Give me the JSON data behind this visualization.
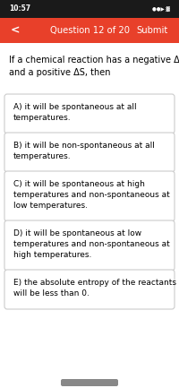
{
  "status_bar_text": "10:57",
  "header_bg": "#E8402A",
  "header_text": "Question 12 of 20",
  "header_left": "<",
  "header_right": "Submit",
  "header_text_color": "#FFFFFF",
  "bg_color": "#FFFFFF",
  "outer_bg": "#1A1A1A",
  "screen_bg": "#F2F2F2",
  "question_text": "If a chemical reaction has a negative ΔH\nand a positive ΔS, then",
  "options": [
    "A) it will be spontaneous at all\ntemperatures.",
    "B) it will be non-spontaneous at all\ntemperatures.",
    "C) it will be spontaneous at high\ntemperatures and non-spontaneous at\nlow temperatures.",
    "D) it will be spontaneous at low\ntemperatures and non-spontaneous at\nhigh temperatures.",
    "E) the absolute entropy of the reactants\nwill be less than 0."
  ],
  "option_box_color": "#FFFFFF",
  "option_border_color": "#CCCCCC",
  "option_text_color": "#000000",
  "question_text_color": "#000000",
  "font_size_question": 7.0,
  "font_size_option": 6.5,
  "font_size_header": 7.2,
  "font_size_status": 5.5,
  "font_size_back": 9.0
}
